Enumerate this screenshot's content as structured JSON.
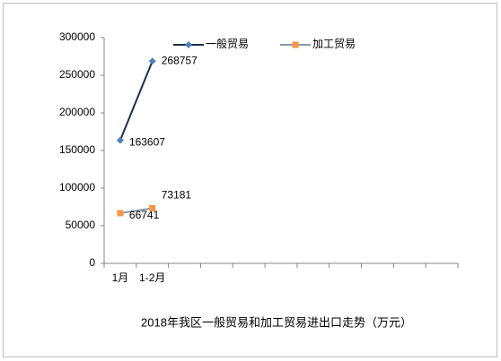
{
  "chart_data": {
    "type": "line",
    "title": "2018年我区一般贸易和加工贸易进出口走势（万元）",
    "categories": [
      "1月",
      "1-2月",
      null,
      null,
      null,
      null,
      null,
      null,
      null,
      null,
      null
    ],
    "series": [
      {
        "name": "一般贸易",
        "color": "#4f81bd",
        "line_color": "#1f2d4e",
        "marker": "diamond",
        "values": [
          163607,
          268757,
          null,
          null,
          null,
          null,
          null,
          null,
          null,
          null,
          null
        ]
      },
      {
        "name": "加工贸易",
        "color": "#f79646",
        "line_color": "#8497b0",
        "marker": "square",
        "values": [
          66741,
          73181,
          null,
          null,
          null,
          null,
          null,
          null,
          null,
          null,
          null
        ]
      }
    ],
    "ylim": [
      0,
      300000
    ],
    "yticks": [
      0,
      50000,
      100000,
      150000,
      200000,
      250000,
      300000
    ],
    "grid": false,
    "legend": "top",
    "data_labels": true
  }
}
